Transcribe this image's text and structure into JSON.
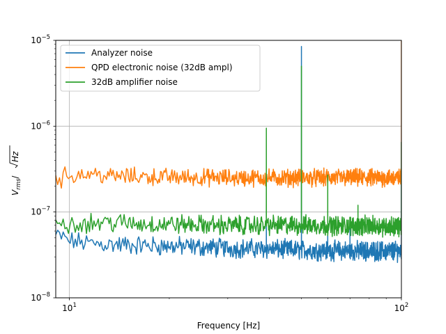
{
  "chart_data": {
    "type": "line",
    "title": "",
    "xlabel": "Frequency [Hz]",
    "ylabel": {
      "base": "V",
      "subscript": "rms",
      "divider": "/",
      "sqrt_radicand": "Hz"
    },
    "x_scale": "log",
    "y_scale": "log",
    "xlim": [
      9.1,
      100
    ],
    "ylim": [
      1e-08,
      1e-05
    ],
    "grid": true,
    "legend_position": "upper-left",
    "x_ticks": [
      {
        "value": 10,
        "base": "10",
        "exp": "1"
      },
      {
        "value": 100,
        "base": "10",
        "exp": "2"
      }
    ],
    "y_ticks": [
      {
        "value": 1e-08,
        "base": "10",
        "exp": "−8"
      },
      {
        "value": 1e-07,
        "base": "10",
        "exp": "−7"
      },
      {
        "value": 1e-06,
        "base": "10",
        "exp": "−6"
      },
      {
        "value": 1e-05,
        "base": "10",
        "exp": "−5"
      }
    ],
    "series": [
      {
        "name": "Analyzer noise",
        "color": "#1f77b4",
        "baseline": [
          [
            9.1,
            5.3e-08
          ],
          [
            9.5,
            5.1e-08
          ],
          [
            10,
            4.6e-08
          ],
          [
            11,
            4.4e-08
          ],
          [
            13,
            4.2e-08
          ],
          [
            16,
            4.1e-08
          ],
          [
            20,
            4e-08
          ],
          [
            25,
            3.9e-08
          ],
          [
            30,
            3.8e-08
          ],
          [
            40,
            3.7e-08
          ],
          [
            50,
            3.6e-08
          ],
          [
            60,
            3.55e-08
          ],
          [
            80,
            3.5e-08
          ],
          [
            100,
            3.5e-08
          ]
        ],
        "noise_rel": 0.1,
        "spikes": [
          [
            39.2,
            1e-07
          ],
          [
            50,
            8.5e-06
          ],
          [
            60,
            6e-08
          ],
          [
            70,
            6.5e-08
          ],
          [
            100,
            6.5e-07
          ]
        ]
      },
      {
        "name": "QPD electronic noise (32dB ampl)",
        "color": "#ff7f0e",
        "baseline": [
          [
            9.1,
            2.6e-07
          ],
          [
            9.3,
            2.2e-07
          ],
          [
            9.6,
            2.6e-07
          ],
          [
            10.5,
            2.75e-07
          ],
          [
            12,
            2.8e-07
          ],
          [
            13,
            2.6e-07
          ],
          [
            16,
            2.6e-07
          ],
          [
            20,
            2.55e-07
          ],
          [
            30,
            2.5e-07
          ],
          [
            50,
            2.5e-07
          ],
          [
            70,
            2.5e-07
          ],
          [
            100,
            2.5e-07
          ]
        ],
        "noise_rel": 0.09,
        "spikes": [
          [
            100,
            1e-05
          ]
        ]
      },
      {
        "name": "32dB amplifier noise",
        "color": "#2ca02c",
        "baseline": [
          [
            9.1,
            8.5e-08
          ],
          [
            9.5,
            7.8e-08
          ],
          [
            10,
            7.3e-08
          ],
          [
            13,
            7.6e-08
          ],
          [
            16,
            7.3e-08
          ],
          [
            20,
            7.2e-08
          ],
          [
            30,
            7e-08
          ],
          [
            50,
            7e-08
          ],
          [
            70,
            6.9e-08
          ],
          [
            100,
            6.8e-08
          ]
        ],
        "noise_rel": 0.1,
        "spikes": [
          [
            39.2,
            9.5e-07
          ],
          [
            50,
            5e-06
          ],
          [
            60,
            2.7e-07
          ],
          [
            74,
            1.2e-07
          ],
          [
            100,
            6.5e-07
          ]
        ]
      }
    ]
  }
}
